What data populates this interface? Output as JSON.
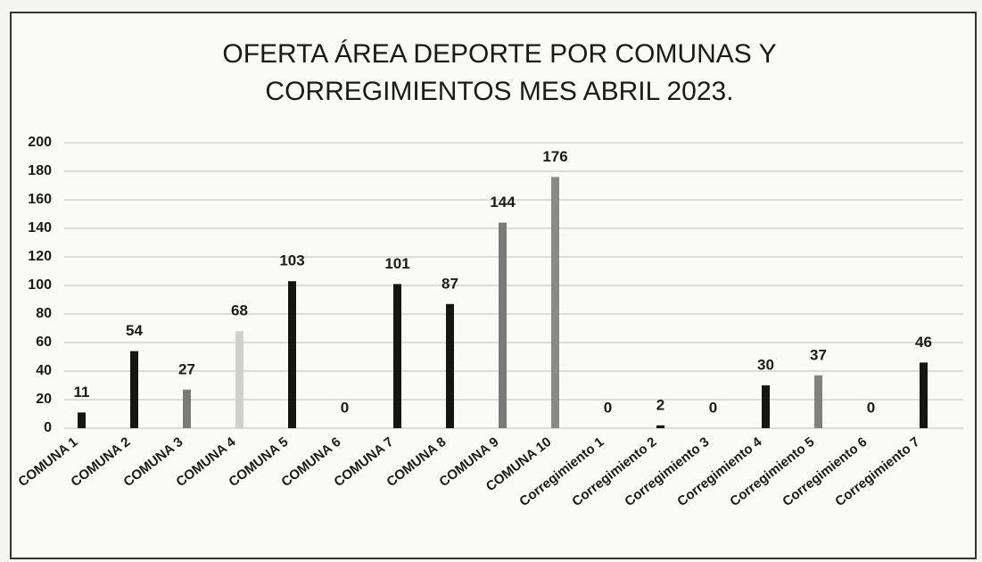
{
  "chart_data": {
    "type": "bar",
    "title": "OFERTA ÁREA DEPORTE POR COMUNAS Y CORREGIMIENTOS MES ABRIL 2023.",
    "categories": [
      "COMUNA 1",
      "COMUNA 2",
      "COMUNA 3",
      "COMUNA 4",
      "COMUNA 5",
      "COMUNA 6",
      "COMUNA 7",
      "COMUNA 8",
      "COMUNA 9",
      "COMUNA 10",
      "Corregimiento 1",
      "Corregimiento 2",
      "Corregimiento 3",
      "Corregimiento 4",
      "Corregimiento 5",
      "Corregimiento 6",
      "Corregimiento 7"
    ],
    "values": [
      11,
      54,
      27,
      68,
      103,
      0,
      101,
      87,
      144,
      176,
      0,
      2,
      0,
      30,
      37,
      0,
      46
    ],
    "colors": [
      "#151515",
      "#151515",
      "#7a7a7a",
      "#d0d0d0",
      "#151515",
      "#151515",
      "#151515",
      "#151515",
      "#7a7a7a",
      "#8a8a8a",
      "#151515",
      "#151515",
      "#151515",
      "#151515",
      "#808080",
      "#151515",
      "#151515"
    ],
    "ylim": [
      0,
      200
    ],
    "yticks": [
      0,
      20,
      40,
      60,
      80,
      100,
      120,
      140,
      160,
      180,
      200
    ],
    "grid": true
  }
}
